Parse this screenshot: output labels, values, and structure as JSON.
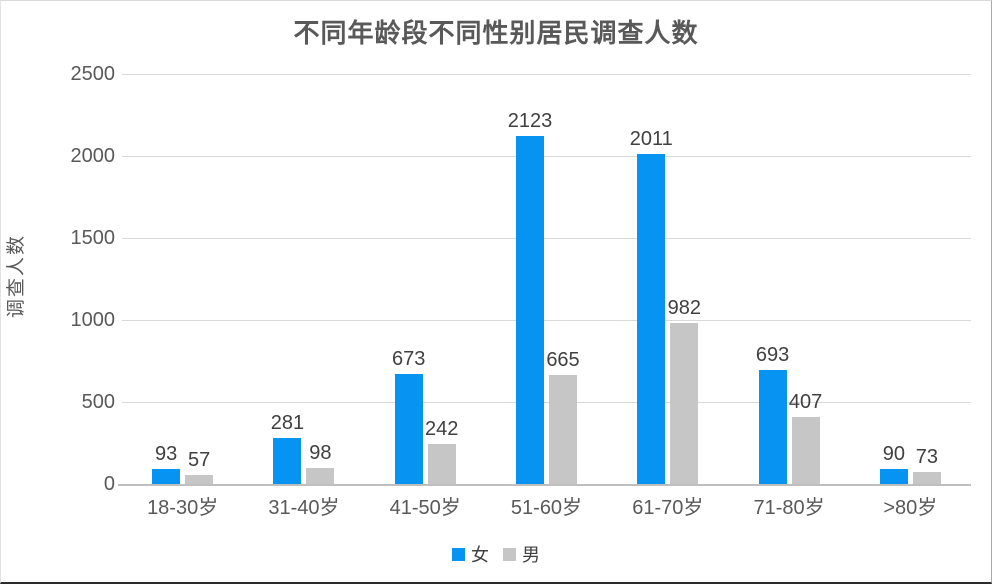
{
  "colors": {
    "female_series": "#0693F2",
    "male_series": "#C6C6C6",
    "gridline": "#D9D9D9",
    "axis_line": "#BFBFBF",
    "tick_text": "#595959",
    "data_label_text": "#404040",
    "title_text": "#595959",
    "background": "#FFFFFF"
  },
  "chart_data": {
    "type": "bar",
    "title": "不同年龄段不同性别居民调查人数",
    "xlabel": "",
    "ylabel": "调查人数",
    "categories": [
      "18-30岁",
      "31-40岁",
      "41-50岁",
      "51-60岁",
      "61-70岁",
      "71-80岁",
      ">80岁"
    ],
    "series": [
      {
        "name": "女",
        "color": "#0693F2",
        "values": [
          93,
          281,
          673,
          2123,
          2011,
          693,
          90
        ]
      },
      {
        "name": "男",
        "color": "#C6C6C6",
        "values": [
          57,
          98,
          242,
          665,
          982,
          407,
          73
        ]
      }
    ],
    "ylim": [
      0,
      2500
    ],
    "yticks": [
      0,
      500,
      1000,
      1500,
      2000,
      2500
    ],
    "grid": true,
    "data_labels": true,
    "legend_position": "bottom"
  }
}
